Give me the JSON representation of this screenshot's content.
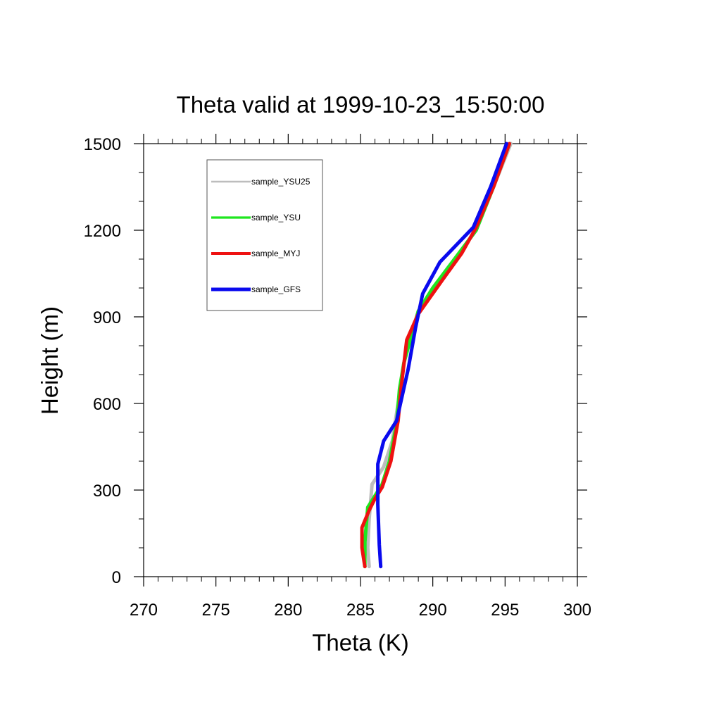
{
  "chart_data": {
    "type": "line",
    "title": "Theta valid at 1999-10-23_15:50:00",
    "xlabel": "Theta (K)",
    "ylabel": "Height (m)",
    "xlim": [
      270,
      300
    ],
    "ylim": [
      0,
      1500
    ],
    "x_ticks": [
      270,
      275,
      280,
      285,
      290,
      295,
      300
    ],
    "y_ticks": [
      0,
      300,
      600,
      900,
      1200,
      1500
    ],
    "x_tick_labels": [
      "270",
      "275",
      "280",
      "285",
      "290",
      "295",
      "300"
    ],
    "y_tick_labels": [
      "0",
      "300",
      "600",
      "900",
      "1200",
      "1500"
    ],
    "grid": false,
    "legend_position": "top-left",
    "series": [
      {
        "name": "sample_YSU25",
        "color": "#bdbdbd",
        "points": [
          [
            285.6,
            35
          ],
          [
            285.5,
            100
          ],
          [
            285.6,
            200
          ],
          [
            285.8,
            320
          ],
          [
            286.6,
            380
          ],
          [
            287.2,
            470
          ],
          [
            287.6,
            600
          ],
          [
            288.0,
            740
          ],
          [
            288.4,
            820
          ],
          [
            289.0,
            920
          ],
          [
            290.0,
            1000
          ],
          [
            291.5,
            1100
          ],
          [
            293.0,
            1200
          ],
          [
            294.2,
            1350
          ],
          [
            295.4,
            1500
          ]
        ]
      },
      {
        "name": "sample_YSU",
        "color": "#1fe61f",
        "points": [
          [
            285.3,
            35
          ],
          [
            285.3,
            120
          ],
          [
            285.5,
            240
          ],
          [
            286.5,
            320
          ],
          [
            287.0,
            400
          ],
          [
            287.5,
            530
          ],
          [
            287.7,
            650
          ],
          [
            288.0,
            740
          ],
          [
            288.5,
            830
          ],
          [
            289.0,
            920
          ],
          [
            290.0,
            1000
          ],
          [
            291.5,
            1100
          ],
          [
            293.0,
            1200
          ],
          [
            294.2,
            1350
          ],
          [
            295.3,
            1500
          ]
        ]
      },
      {
        "name": "sample_MYJ",
        "color": "#ee1111",
        "points": [
          [
            285.3,
            35
          ],
          [
            285.1,
            100
          ],
          [
            285.1,
            170
          ],
          [
            285.6,
            230
          ],
          [
            286.0,
            270
          ],
          [
            286.5,
            310
          ],
          [
            287.1,
            400
          ],
          [
            287.6,
            540
          ],
          [
            287.8,
            650
          ],
          [
            288.2,
            820
          ],
          [
            289.0,
            910
          ],
          [
            290.7,
            1030
          ],
          [
            292.0,
            1120
          ],
          [
            293.0,
            1210
          ],
          [
            294.2,
            1350
          ],
          [
            295.3,
            1500
          ]
        ]
      },
      {
        "name": "sample_GFS",
        "color": "#0a0aee",
        "points": [
          [
            286.4,
            35
          ],
          [
            286.3,
            110
          ],
          [
            286.2,
            250
          ],
          [
            286.2,
            390
          ],
          [
            286.6,
            470
          ],
          [
            287.5,
            540
          ],
          [
            288.3,
            720
          ],
          [
            288.8,
            860
          ],
          [
            289.3,
            980
          ],
          [
            290.5,
            1090
          ],
          [
            292.8,
            1210
          ],
          [
            294.0,
            1350
          ],
          [
            295.1,
            1500
          ]
        ]
      }
    ]
  }
}
